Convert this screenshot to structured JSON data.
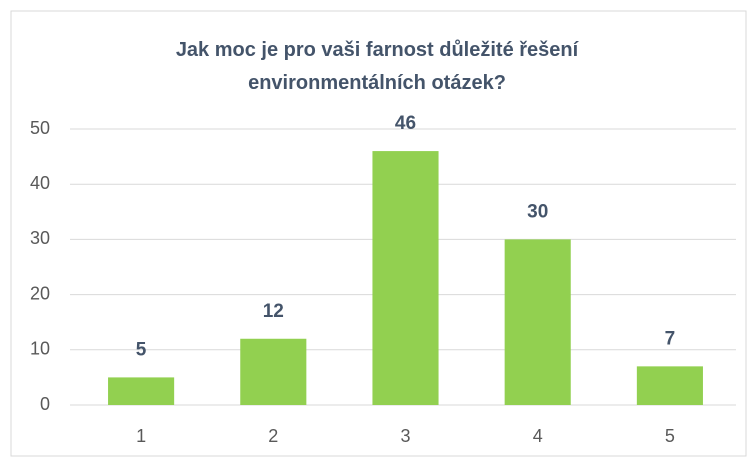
{
  "chart_data": {
    "type": "bar",
    "title": "Jak moc je pro vaši farnost důležité řešení environmentálních otázek?",
    "categories": [
      "1",
      "2",
      "3",
      "4",
      "5"
    ],
    "values": [
      5,
      12,
      46,
      30,
      7
    ],
    "color": "#92d050",
    "ylim": [
      0,
      50
    ],
    "yticks": [
      0,
      10,
      20,
      30,
      40,
      50
    ],
    "grid": true
  }
}
